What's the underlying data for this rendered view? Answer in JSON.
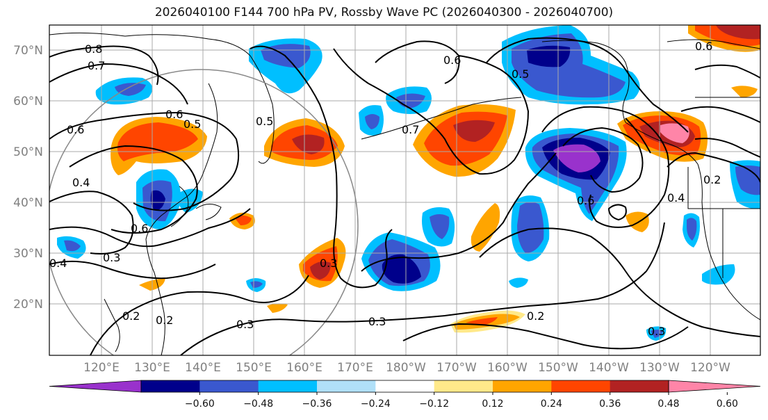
{
  "title": "2026040100 F144 700 hPa PV, Rossby Wave PC (2026040300 - 2026040700)",
  "lat_labels": [
    "70°N",
    "60°N",
    "50°N",
    "40°N",
    "30°N",
    "20°N"
  ],
  "lon_labels": [
    "120°E",
    "130°E",
    "140°E",
    "150°E",
    "160°E",
    "170°E",
    "180°W",
    "170°W",
    "160°W",
    "150°W",
    "140°W",
    "130°W",
    "120°W"
  ],
  "colorbar": {
    "colors": [
      "#9932cc",
      "#00008b",
      "#3a58cf",
      "#00bfff",
      "#b0e0f8",
      "#ffffff",
      "#ffe98a",
      "#ffa500",
      "#ff4500",
      "#b22222",
      "#ff85a8"
    ],
    "tick_labels": [
      "−0.60",
      "−0.48",
      "−0.36",
      "−0.24",
      "−0.12",
      "0.12",
      "0.24",
      "0.36",
      "0.48",
      "0.60"
    ]
  },
  "contour_labels": [
    "0.8",
    "0.7",
    "0.6",
    "0.6",
    "0.5",
    "0.5",
    "0.7",
    "0.6",
    "0.4",
    "0.6",
    "0.5",
    "0.4",
    "0.3",
    "0.2",
    "0.2",
    "0.3",
    "0.3",
    "0.3",
    "0.2",
    "0.3",
    "0.6",
    "0.4",
    "0.2",
    "0.6"
  ]
}
